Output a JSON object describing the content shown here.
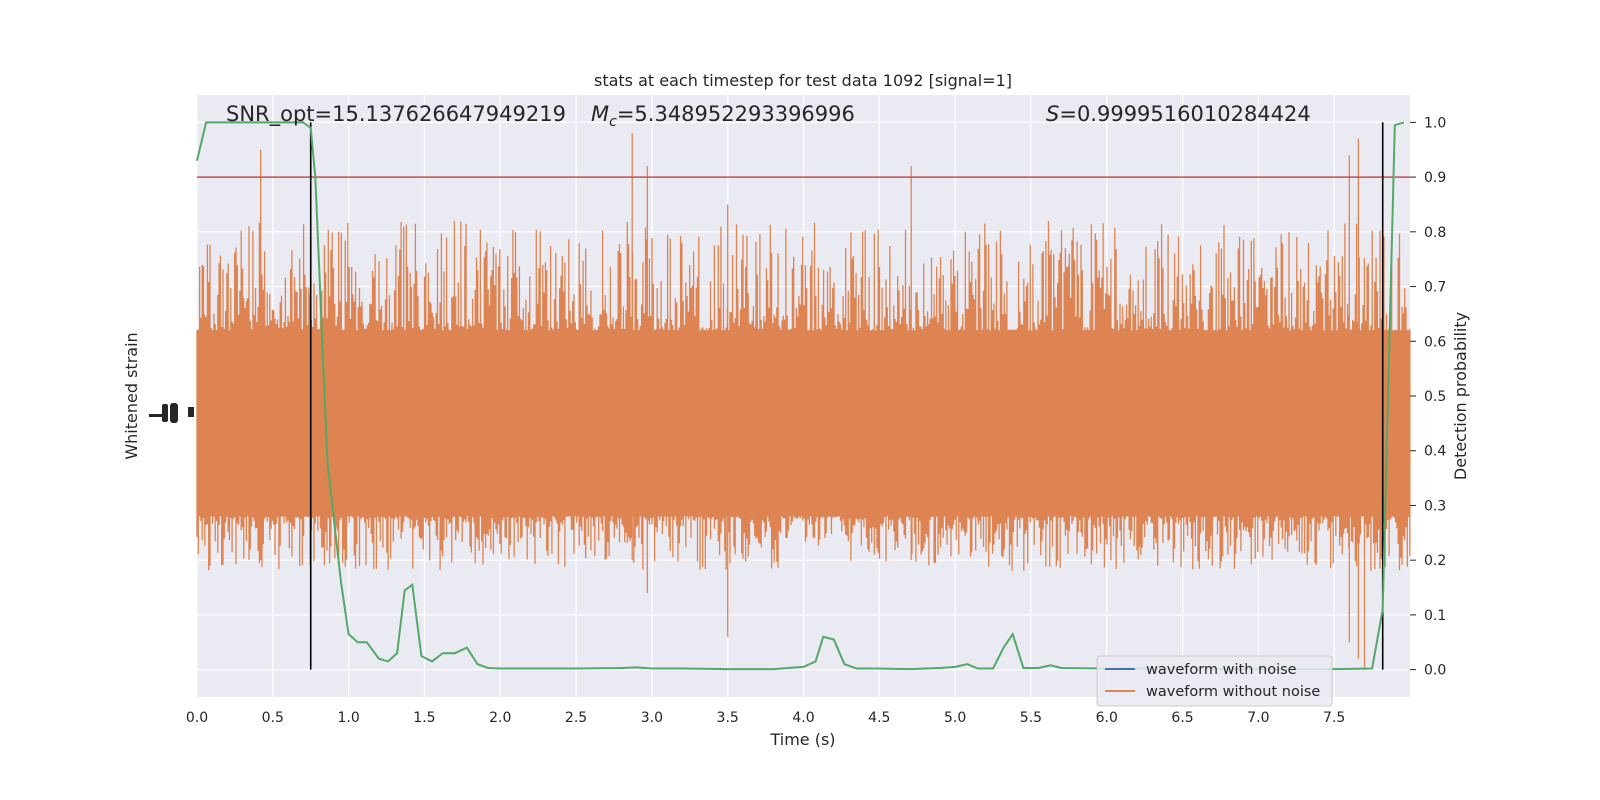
{
  "chart_data": {
    "type": "line",
    "title": "stats at each timestep for test data 1092 [signal=1]",
    "xlabel": "Time (s)",
    "ylabel_left": "Whitened strain",
    "ylabel_right": "Detection probability",
    "xlim": [
      0.0,
      8.0
    ],
    "ylim_right": [
      -0.05,
      1.05
    ],
    "x_ticks": [
      0.0,
      0.5,
      1.0,
      1.5,
      2.0,
      2.5,
      3.0,
      3.5,
      4.0,
      4.5,
      5.0,
      5.5,
      6.0,
      6.5,
      7.0,
      7.5
    ],
    "y_ticks_right": [
      0.0,
      0.1,
      0.2,
      0.3,
      0.4,
      0.5,
      0.6,
      0.7,
      0.8,
      0.9,
      1.0
    ],
    "grid": true,
    "annotations": {
      "snr": "SNR_opt=15.137626647949219",
      "mc_symbol": "M",
      "mc_sub": "c",
      "mc_value": "=5.348952293396996",
      "s_symbol": "S",
      "s_value": "=0.9999516010284424"
    },
    "threshold": 0.9,
    "vlines": [
      0.75,
      7.82
    ],
    "series": [
      {
        "name": "waveform with noise",
        "color": "#4c72b0",
        "shown_in_legend_only": true
      },
      {
        "name": "waveform without noise",
        "color": "#dd8452",
        "note_values": "dense noise band roughly 0.25–0.80 on right axis"
      },
      {
        "name": "",
        "color": "#55a868",
        "x": [
          0.0,
          0.06,
          0.2,
          0.4,
          0.6,
          0.7,
          0.75,
          0.78,
          0.86,
          0.95,
          1.0,
          1.06,
          1.12,
          1.2,
          1.26,
          1.32,
          1.37,
          1.42,
          1.48,
          1.55,
          1.62,
          1.7,
          1.78,
          1.85,
          1.92,
          2.0,
          2.2,
          2.5,
          2.8,
          2.9,
          3.0,
          3.2,
          3.5,
          3.8,
          3.9,
          4.0,
          4.08,
          4.13,
          4.2,
          4.27,
          4.35,
          4.5,
          4.7,
          4.9,
          5.0,
          5.08,
          5.15,
          5.25,
          5.32,
          5.38,
          5.45,
          5.55,
          5.63,
          5.7,
          6.0,
          6.5,
          7.0,
          7.5,
          7.75,
          7.82,
          7.9,
          7.96
        ],
        "values": [
          0.93,
          1.0,
          1.0,
          1.0,
          1.0,
          1.0,
          0.99,
          0.9,
          0.38,
          0.16,
          0.065,
          0.05,
          0.05,
          0.02,
          0.015,
          0.03,
          0.145,
          0.155,
          0.025,
          0.015,
          0.03,
          0.03,
          0.04,
          0.01,
          0.003,
          0.002,
          0.002,
          0.002,
          0.003,
          0.004,
          0.002,
          0.002,
          0.001,
          0.001,
          0.003,
          0.005,
          0.015,
          0.06,
          0.055,
          0.01,
          0.002,
          0.002,
          0.001,
          0.003,
          0.005,
          0.01,
          0.002,
          0.002,
          0.04,
          0.065,
          0.003,
          0.003,
          0.008,
          0.003,
          0.002,
          0.002,
          0.001,
          0.001,
          0.002,
          0.11,
          0.995,
          1.0
        ]
      }
    ],
    "legend": {
      "position": "lower-right",
      "entries": [
        "waveform with noise",
        "waveform without noise"
      ]
    },
    "colors": {
      "axes_bg": "#eaeaf2",
      "grid": "#ffffff",
      "threshold": "#c44e52",
      "vline": "#000000"
    }
  }
}
